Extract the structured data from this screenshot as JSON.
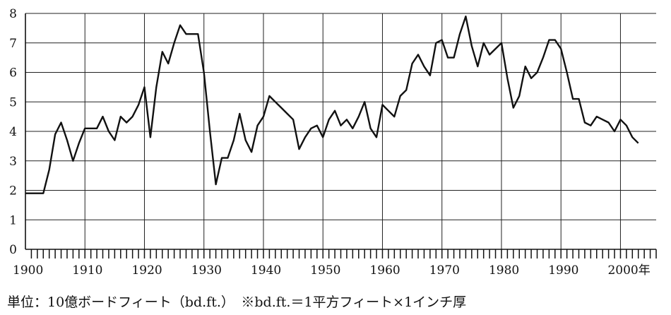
{
  "chart_data": {
    "type": "line",
    "title": "",
    "xlabel": "",
    "ylabel": "",
    "xlim": [
      1900,
      2006
    ],
    "ylim": [
      0,
      8
    ],
    "grid": true,
    "legend": "none",
    "line_color": "#111111",
    "x_ticks": [
      1900,
      1910,
      1920,
      1930,
      1940,
      1950,
      1960,
      1970,
      1980,
      1990,
      2000
    ],
    "x_tick_labels": [
      "1900",
      "1910",
      "1920",
      "1930",
      "1940",
      "1950",
      "1960",
      "1970",
      "1980",
      "1990",
      "2000年"
    ],
    "y_ticks": [
      0,
      1,
      2,
      3,
      4,
      5,
      6,
      7,
      8
    ],
    "y_tick_labels": [
      "0",
      "1",
      "2",
      "3",
      "4",
      "5",
      "6",
      "7",
      "8"
    ],
    "series": [
      {
        "x": [
          1900,
          1901,
          1902,
          1903,
          1904,
          1905,
          1906,
          1907,
          1908,
          1909,
          1910,
          1911,
          1912,
          1913,
          1914,
          1915,
          1916,
          1917,
          1918,
          1919,
          1920,
          1921,
          1922,
          1923,
          1924,
          1925,
          1926,
          1927,
          1928,
          1929,
          1930,
          1931,
          1932,
          1933,
          1934,
          1935,
          1936,
          1937,
          1938,
          1939,
          1940,
          1941,
          1942,
          1943,
          1944,
          1945,
          1946,
          1947,
          1948,
          1949,
          1950,
          1951,
          1952,
          1953,
          1954,
          1955,
          1956,
          1957,
          1958,
          1959,
          1960,
          1961,
          1962,
          1963,
          1964,
          1965,
          1966,
          1967,
          1968,
          1969,
          1970,
          1971,
          1972,
          1973,
          1974,
          1975,
          1976,
          1977,
          1978,
          1979,
          1980,
          1981,
          1982,
          1983,
          1984,
          1985,
          1986,
          1987,
          1988,
          1989,
          1990,
          1991,
          1992,
          1993,
          1994,
          1995,
          1996,
          1997,
          1998,
          1999,
          2000,
          2001,
          2002,
          2003
        ],
        "y": [
          1.9,
          1.9,
          1.9,
          1.9,
          2.7,
          3.9,
          4.3,
          3.7,
          3.0,
          3.6,
          4.1,
          4.1,
          4.1,
          4.5,
          4.0,
          3.7,
          4.5,
          4.3,
          4.5,
          4.9,
          5.5,
          3.8,
          5.5,
          6.7,
          6.3,
          7.0,
          7.6,
          7.3,
          7.3,
          7.3,
          6.0,
          4.0,
          2.2,
          3.1,
          3.1,
          3.7,
          4.6,
          3.7,
          3.3,
          4.2,
          4.5,
          5.2,
          5.0,
          4.8,
          4.6,
          4.4,
          3.4,
          3.8,
          4.1,
          4.2,
          3.8,
          4.4,
          4.7,
          4.2,
          4.4,
          4.1,
          4.5,
          5.0,
          4.1,
          3.8,
          4.9,
          4.7,
          4.5,
          5.2,
          5.4,
          6.3,
          6.6,
          6.2,
          5.9,
          7.0,
          7.1,
          6.5,
          6.5,
          7.3,
          7.9,
          6.9,
          6.2,
          7.0,
          6.6,
          6.8,
          7.0,
          5.8,
          4.8,
          5.2,
          6.2,
          5.8,
          6.0,
          6.5,
          7.1,
          7.1,
          6.8,
          6.0,
          5.1,
          5.1,
          4.3,
          4.2,
          4.5,
          4.4,
          4.3,
          4.0,
          4.4,
          4.2,
          3.8,
          3.6
        ]
      }
    ],
    "note": "単位：10億ボードフィート（bd.ft.）　※bd.ft.＝1平方フィート×1インチ厚"
  }
}
